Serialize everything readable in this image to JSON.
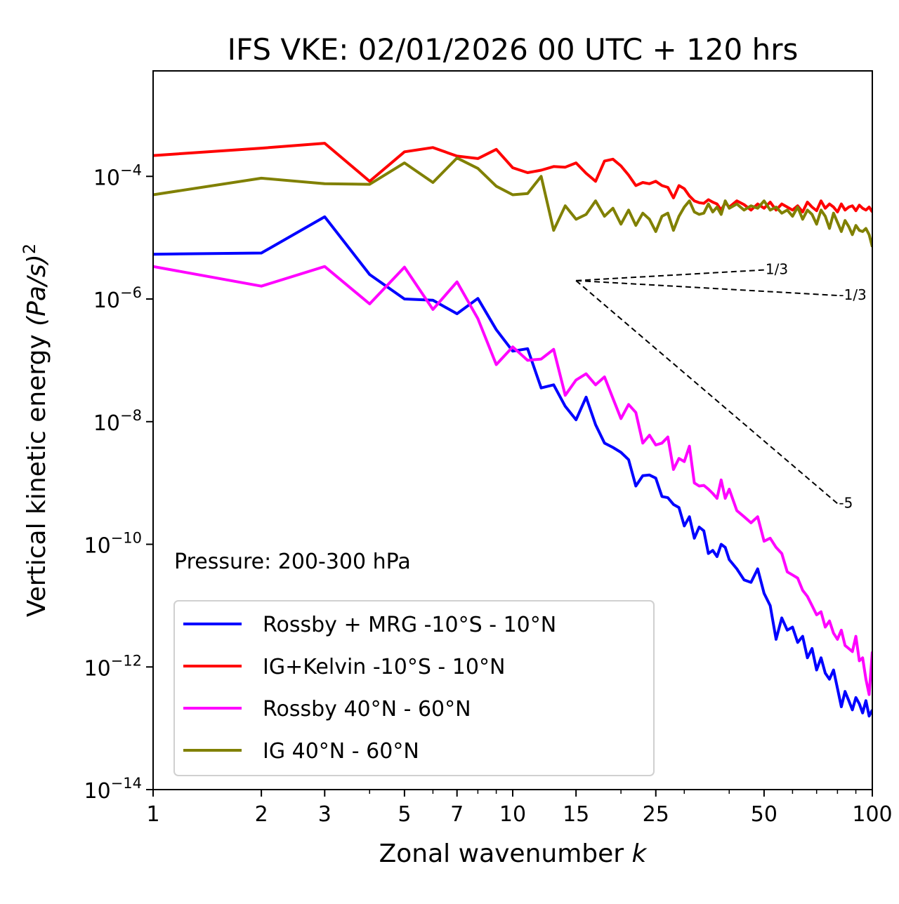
{
  "chart_data": {
    "type": "line",
    "title": "IFS VKE: 02/01/2026 00 UTC + 120 hrs",
    "xlabel": "Zonal wavenumber",
    "xlabel_var": "k",
    "ylabel": "Vertical kinetic energy",
    "ylabel_unit": "(Pa/s)",
    "ylabel_unit_exp": "2",
    "xscale": "log",
    "yscale": "log",
    "xlim": [
      1,
      100
    ],
    "ylim_exp": [
      -14,
      -2.28
    ],
    "grid": false,
    "x_ticks": [
      {
        "value": 1,
        "label": "1"
      },
      {
        "value": 2,
        "label": "2"
      },
      {
        "value": 3,
        "label": "3"
      },
      {
        "value": 5,
        "label": "5"
      },
      {
        "value": 7,
        "label": "7"
      },
      {
        "value": 10,
        "label": "10"
      },
      {
        "value": 15,
        "label": "15"
      },
      {
        "value": 25,
        "label": "25"
      },
      {
        "value": 50,
        "label": "50"
      },
      {
        "value": 100,
        "label": "100"
      }
    ],
    "y_ticks": [
      {
        "exp": -4,
        "base": "10",
        "sup": "−4"
      },
      {
        "exp": -6,
        "base": "10",
        "sup": "−6"
      },
      {
        "exp": -8,
        "base": "10",
        "sup": "−8"
      },
      {
        "exp": -10,
        "base": "10",
        "sup": "−10"
      },
      {
        "exp": -12,
        "base": "10",
        "sup": "−12"
      },
      {
        "exp": -14,
        "base": "10",
        "sup": "−14"
      }
    ],
    "annotation": "Pressure: 200-300 hPa",
    "legend_position": "lower-left",
    "reference_slopes": {
      "origin": {
        "k": 15,
        "exp": -5.7
      },
      "lines": [
        {
          "slope": "1/3",
          "label": "1/3",
          "k_end": 50
        },
        {
          "slope": "-1/3",
          "label": "-1/3",
          "k_end": 80
        },
        {
          "slope": "-5",
          "label": "-5",
          "k_end": 80
        }
      ]
    },
    "series": [
      {
        "name": "Rossby + MRG -10°S - 10°N",
        "color": "#0000ff",
        "k": [
          1,
          2,
          3,
          4,
          5,
          6,
          7,
          8,
          9,
          10,
          11,
          12,
          13,
          14,
          15,
          16,
          17,
          18,
          19,
          20,
          21,
          22,
          23,
          24,
          25,
          26,
          27,
          28,
          29,
          30,
          31,
          32,
          33,
          34,
          35,
          36,
          37,
          38,
          39,
          40,
          42,
          44,
          46,
          48,
          50,
          52,
          54,
          56,
          58,
          60,
          62,
          64,
          66,
          68,
          70,
          72,
          74,
          76,
          78,
          80,
          82,
          84,
          86,
          88,
          90,
          92,
          94,
          96,
          98,
          100
        ],
        "log10_vke": [
          -5.27,
          -5.25,
          -4.66,
          -5.6,
          -6.0,
          -6.02,
          -6.24,
          -5.99,
          -6.5,
          -6.85,
          -6.81,
          -7.45,
          -7.4,
          -7.75,
          -7.97,
          -7.6,
          -8.05,
          -8.35,
          -8.42,
          -8.5,
          -8.62,
          -9.05,
          -8.88,
          -8.87,
          -8.92,
          -9.22,
          -9.24,
          -9.35,
          -9.4,
          -9.7,
          -9.55,
          -9.9,
          -9.72,
          -9.78,
          -10.15,
          -10.1,
          -10.2,
          -10.0,
          -10.05,
          -10.25,
          -10.4,
          -10.58,
          -10.62,
          -10.4,
          -10.8,
          -11.0,
          -11.55,
          -11.2,
          -11.4,
          -11.35,
          -11.6,
          -11.5,
          -11.85,
          -11.7,
          -12.05,
          -11.85,
          -12.1,
          -12.2,
          -12.05,
          -12.35,
          -12.65,
          -12.4,
          -12.55,
          -12.7,
          -12.5,
          -12.6,
          -12.75,
          -12.55,
          -12.8,
          -12.7
        ]
      },
      {
        "name": "IG+Kelvin -10°S - 10°N",
        "color": "#ff0000",
        "k": [
          1,
          2,
          3,
          4,
          5,
          6,
          7,
          8,
          9,
          10,
          11,
          12,
          13,
          14,
          15,
          16,
          17,
          18,
          19,
          20,
          21,
          22,
          23,
          24,
          25,
          26,
          27,
          28,
          29,
          30,
          31,
          32,
          33,
          34,
          35,
          36,
          37,
          38,
          39,
          40,
          42,
          44,
          46,
          48,
          50,
          52,
          54,
          56,
          58,
          60,
          62,
          64,
          66,
          68,
          70,
          72,
          74,
          76,
          78,
          80,
          82,
          84,
          86,
          88,
          90,
          92,
          94,
          96,
          98,
          100
        ],
        "log10_vke": [
          -3.66,
          -3.54,
          -3.46,
          -4.08,
          -3.6,
          -3.53,
          -3.67,
          -3.71,
          -3.56,
          -3.86,
          -3.94,
          -3.9,
          -3.84,
          -3.85,
          -3.78,
          -3.95,
          -4.08,
          -3.75,
          -3.72,
          -3.83,
          -3.98,
          -4.15,
          -4.1,
          -4.12,
          -4.08,
          -4.15,
          -4.18,
          -4.35,
          -4.15,
          -4.2,
          -4.32,
          -4.4,
          -4.43,
          -4.44,
          -4.38,
          -4.42,
          -4.45,
          -4.55,
          -4.43,
          -4.5,
          -4.4,
          -4.46,
          -4.55,
          -4.45,
          -4.52,
          -4.42,
          -4.55,
          -4.45,
          -4.5,
          -4.55,
          -4.48,
          -4.58,
          -4.42,
          -4.5,
          -4.56,
          -4.4,
          -4.52,
          -4.45,
          -4.5,
          -4.58,
          -4.45,
          -4.55,
          -4.5,
          -4.48,
          -4.56,
          -4.47,
          -4.52,
          -4.55,
          -4.5,
          -4.58
        ]
      },
      {
        "name": "Rossby 40°N - 60°N",
        "color": "#ff00ff",
        "k": [
          1,
          2,
          3,
          4,
          5,
          6,
          7,
          8,
          9,
          10,
          11,
          12,
          13,
          14,
          15,
          16,
          17,
          18,
          19,
          20,
          21,
          22,
          23,
          24,
          25,
          26,
          27,
          28,
          29,
          30,
          31,
          32,
          33,
          34,
          35,
          36,
          37,
          38,
          39,
          40,
          42,
          44,
          46,
          48,
          50,
          52,
          54,
          56,
          58,
          60,
          62,
          64,
          66,
          68,
          70,
          72,
          74,
          76,
          78,
          80,
          82,
          84,
          86,
          88,
          90,
          92,
          94,
          96,
          98,
          100
        ],
        "log10_vke": [
          -5.47,
          -5.79,
          -5.47,
          -6.08,
          -5.48,
          -6.17,
          -5.72,
          -6.32,
          -7.07,
          -6.78,
          -7.0,
          -6.98,
          -6.82,
          -7.57,
          -7.32,
          -7.22,
          -7.4,
          -7.27,
          -7.62,
          -7.95,
          -7.72,
          -7.85,
          -8.35,
          -8.22,
          -8.38,
          -8.35,
          -8.25,
          -8.78,
          -8.6,
          -8.65,
          -8.4,
          -9.0,
          -9.05,
          -9.04,
          -9.1,
          -9.17,
          -9.25,
          -8.95,
          -9.25,
          -9.1,
          -9.45,
          -9.55,
          -9.65,
          -9.55,
          -9.95,
          -9.9,
          -10.05,
          -10.15,
          -10.45,
          -10.5,
          -10.55,
          -10.75,
          -10.85,
          -11.0,
          -11.15,
          -11.1,
          -11.35,
          -11.25,
          -11.45,
          -11.55,
          -11.4,
          -11.65,
          -11.7,
          -11.75,
          -11.5,
          -11.9,
          -11.85,
          -12.2,
          -12.45,
          -11.75
        ]
      },
      {
        "name": "IG 40°N - 60°N",
        "color": "#808000",
        "k": [
          1,
          2,
          3,
          4,
          5,
          6,
          7,
          8,
          9,
          10,
          11,
          12,
          13,
          14,
          15,
          16,
          17,
          18,
          19,
          20,
          21,
          22,
          23,
          24,
          25,
          26,
          27,
          28,
          29,
          30,
          31,
          32,
          33,
          34,
          35,
          36,
          37,
          38,
          39,
          40,
          42,
          44,
          46,
          48,
          50,
          52,
          54,
          56,
          58,
          60,
          62,
          64,
          66,
          68,
          70,
          72,
          74,
          76,
          78,
          80,
          82,
          84,
          86,
          88,
          90,
          92,
          94,
          96,
          98,
          100
        ],
        "log10_vke": [
          -4.3,
          -4.03,
          -4.12,
          -4.13,
          -3.78,
          -4.1,
          -3.7,
          -3.87,
          -4.16,
          -4.3,
          -4.28,
          -4.0,
          -4.88,
          -4.48,
          -4.7,
          -4.62,
          -4.4,
          -4.65,
          -4.52,
          -4.78,
          -4.55,
          -4.8,
          -4.6,
          -4.7,
          -4.9,
          -4.65,
          -4.6,
          -4.88,
          -4.65,
          -4.5,
          -4.4,
          -4.58,
          -4.62,
          -4.6,
          -4.45,
          -4.58,
          -4.5,
          -4.62,
          -4.4,
          -4.52,
          -4.45,
          -4.55,
          -4.48,
          -4.52,
          -4.4,
          -4.55,
          -4.5,
          -4.6,
          -4.55,
          -4.65,
          -4.5,
          -4.7,
          -4.55,
          -4.62,
          -4.78,
          -4.55,
          -4.65,
          -4.85,
          -4.6,
          -4.75,
          -4.9,
          -4.72,
          -4.82,
          -4.95,
          -4.8,
          -4.88,
          -4.9,
          -4.85,
          -4.95,
          -5.15
        ]
      }
    ]
  }
}
